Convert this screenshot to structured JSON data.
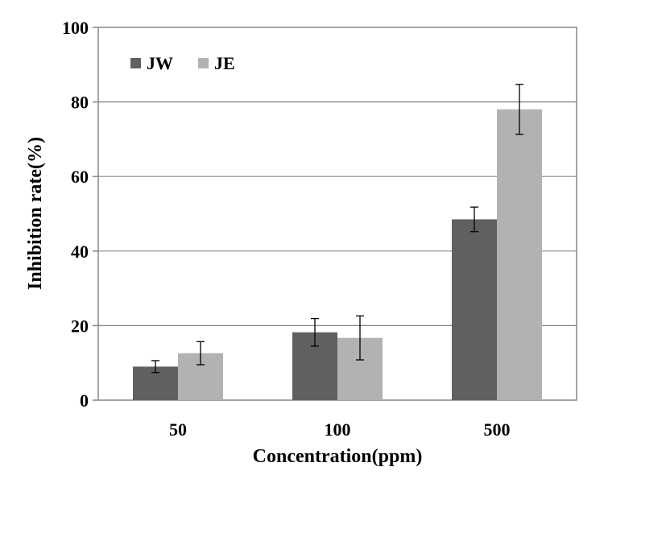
{
  "chart_data": {
    "type": "bar",
    "categories": [
      "50",
      "100",
      "500"
    ],
    "series": [
      {
        "name": "JW",
        "color": "#606060",
        "values": [
          9,
          18.2,
          48.5
        ],
        "errors": [
          1.6,
          3.7,
          3.3
        ]
      },
      {
        "name": "JE",
        "color": "#b2b2b2",
        "values": [
          12.6,
          16.7,
          78
        ],
        "errors": [
          3.1,
          5.9,
          6.7
        ]
      }
    ],
    "xlabel": "Concentration(ppm)",
    "ylabel": "Inhibition rate(%)",
    "ylim": [
      0,
      100
    ],
    "yticks": [
      "0",
      "20",
      "40",
      "60",
      "80",
      "100"
    ],
    "grid": true,
    "legend": "top-left"
  }
}
